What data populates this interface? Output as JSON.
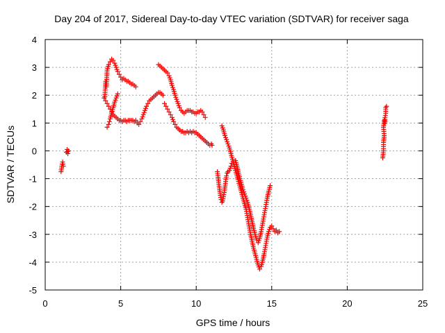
{
  "chart_data": {
    "type": "scatter",
    "title": "Day 204 of 2017, Sidereal Day-to-day VTEC variation (SDTVAR) for receiver saga",
    "xlabel": "GPS time / hours",
    "ylabel": "SDTVAR / TECUs",
    "xlim": [
      0,
      25
    ],
    "ylim": [
      -5,
      4
    ],
    "xticks": [
      0,
      5,
      10,
      15,
      20,
      25
    ],
    "yticks": [
      -5,
      -4,
      -3,
      -2,
      -1,
      0,
      1,
      2,
      3,
      4
    ],
    "xtick_labels": [
      "0",
      "5",
      "10",
      "15",
      "20",
      "25"
    ],
    "ytick_labels": [
      "-5",
      "-4",
      "-3",
      "-2",
      "-1",
      "0",
      "1",
      "2",
      "3",
      "4"
    ],
    "grid": true,
    "legend": "none",
    "marker": "+",
    "color": "#ff0000",
    "series": [
      {
        "points": [
          [
            1.05,
            -0.75
          ],
          [
            1.1,
            -0.55
          ],
          [
            1.15,
            -0.4
          ],
          [
            1.2,
            -0.55
          ]
        ]
      },
      {
        "points": [
          [
            1.4,
            -0.05
          ],
          [
            1.45,
            0.05
          ],
          [
            1.5,
            -0.1
          ],
          [
            1.55,
            0.0
          ]
        ]
      },
      {
        "points": [
          [
            3.95,
            1.95
          ],
          [
            4.0,
            2.5
          ],
          [
            4.05,
            2.3
          ],
          [
            4.1,
            2.9
          ],
          [
            4.2,
            3.1
          ],
          [
            4.3,
            3.2
          ],
          [
            4.4,
            3.3
          ],
          [
            4.5,
            3.25
          ],
          [
            4.6,
            3.15
          ],
          [
            4.7,
            3.0
          ],
          [
            4.8,
            2.85
          ],
          [
            4.9,
            2.75
          ],
          [
            5.0,
            2.65
          ],
          [
            5.1,
            2.55
          ],
          [
            5.2,
            2.6
          ],
          [
            5.3,
            2.55
          ],
          [
            5.4,
            2.5
          ],
          [
            5.5,
            2.5
          ],
          [
            5.6,
            2.45
          ],
          [
            5.7,
            2.4
          ],
          [
            5.8,
            2.4
          ],
          [
            5.9,
            2.35
          ],
          [
            6.0,
            2.3
          ]
        ]
      },
      {
        "points": [
          [
            3.9,
            1.9
          ],
          [
            4.0,
            1.8
          ],
          [
            4.1,
            1.7
          ],
          [
            4.2,
            1.6
          ],
          [
            4.3,
            1.5
          ],
          [
            4.4,
            1.4
          ],
          [
            4.5,
            1.3
          ],
          [
            4.6,
            1.25
          ],
          [
            4.7,
            1.2
          ],
          [
            4.8,
            1.15
          ],
          [
            4.9,
            1.1
          ],
          [
            5.0,
            1.1
          ],
          [
            5.1,
            1.05
          ],
          [
            5.2,
            1.1
          ],
          [
            5.3,
            1.1
          ],
          [
            5.4,
            1.05
          ],
          [
            5.5,
            1.1
          ],
          [
            5.6,
            1.1
          ],
          [
            5.7,
            1.1
          ],
          [
            5.8,
            1.1
          ],
          [
            5.9,
            1.05
          ],
          [
            6.0,
            1.1
          ],
          [
            6.1,
            1.0
          ],
          [
            6.2,
            0.95
          ],
          [
            6.3,
            1.05
          ],
          [
            6.4,
            1.15
          ],
          [
            6.5,
            1.3
          ],
          [
            6.6,
            1.45
          ],
          [
            6.7,
            1.6
          ],
          [
            6.8,
            1.7
          ],
          [
            6.9,
            1.8
          ],
          [
            7.0,
            1.85
          ],
          [
            7.1,
            1.9
          ],
          [
            7.2,
            1.95
          ],
          [
            7.3,
            2.0
          ],
          [
            7.4,
            2.05
          ],
          [
            7.5,
            2.1
          ],
          [
            7.6,
            2.1
          ],
          [
            7.7,
            2.05
          ],
          [
            7.8,
            2.0
          ]
        ]
      },
      {
        "points": [
          [
            4.1,
            0.85
          ],
          [
            4.2,
            0.95
          ],
          [
            4.25,
            1.05
          ],
          [
            4.3,
            1.15
          ],
          [
            4.4,
            1.35
          ],
          [
            4.5,
            1.55
          ],
          [
            4.6,
            1.75
          ],
          [
            4.7,
            1.9
          ],
          [
            4.8,
            2.05
          ]
        ]
      },
      {
        "points": [
          [
            7.5,
            3.1
          ],
          [
            7.6,
            3.05
          ],
          [
            7.7,
            3.0
          ],
          [
            7.8,
            2.95
          ],
          [
            7.9,
            2.9
          ],
          [
            8.0,
            2.85
          ],
          [
            8.1,
            2.8
          ],
          [
            8.2,
            2.7
          ],
          [
            8.3,
            2.55
          ],
          [
            8.4,
            2.35
          ],
          [
            8.5,
            2.2
          ],
          [
            8.6,
            2.0
          ],
          [
            8.7,
            1.85
          ],
          [
            8.8,
            1.7
          ],
          [
            8.9,
            1.55
          ],
          [
            9.0,
            1.45
          ],
          [
            9.1,
            1.4
          ],
          [
            9.2,
            1.35
          ],
          [
            9.3,
            1.4
          ],
          [
            9.4,
            1.45
          ],
          [
            9.5,
            1.45
          ],
          [
            9.6,
            1.45
          ],
          [
            9.7,
            1.4
          ],
          [
            9.8,
            1.4
          ],
          [
            9.9,
            1.35
          ],
          [
            10.0,
            1.35
          ],
          [
            10.1,
            1.4
          ],
          [
            10.2,
            1.4
          ],
          [
            10.3,
            1.45
          ],
          [
            10.4,
            1.4
          ],
          [
            10.5,
            1.3
          ],
          [
            10.6,
            1.2
          ]
        ]
      },
      {
        "points": [
          [
            7.9,
            1.7
          ],
          [
            8.0,
            1.6
          ],
          [
            8.1,
            1.5
          ],
          [
            8.2,
            1.4
          ],
          [
            8.3,
            1.3
          ],
          [
            8.4,
            1.2
          ],
          [
            8.5,
            1.05
          ],
          [
            8.6,
            0.95
          ],
          [
            8.7,
            0.85
          ],
          [
            8.8,
            0.8
          ],
          [
            8.9,
            0.75
          ],
          [
            9.0,
            0.7
          ],
          [
            9.1,
            0.7
          ],
          [
            9.2,
            0.65
          ],
          [
            9.3,
            0.65
          ],
          [
            9.4,
            0.7
          ],
          [
            9.5,
            0.65
          ],
          [
            9.6,
            0.7
          ],
          [
            9.7,
            0.65
          ],
          [
            9.8,
            0.7
          ],
          [
            9.9,
            0.65
          ],
          [
            10.0,
            0.65
          ],
          [
            10.1,
            0.6
          ],
          [
            10.2,
            0.55
          ],
          [
            10.3,
            0.5
          ],
          [
            10.4,
            0.45
          ],
          [
            10.5,
            0.4
          ],
          [
            10.6,
            0.35
          ],
          [
            10.7,
            0.3
          ],
          [
            10.8,
            0.25
          ],
          [
            10.9,
            0.2
          ],
          [
            11.0,
            0.25
          ],
          [
            11.05,
            0.2
          ]
        ]
      },
      {
        "points": [
          [
            11.4,
            -0.75
          ],
          [
            11.45,
            -0.95
          ],
          [
            11.5,
            -1.2
          ],
          [
            11.55,
            -1.4
          ],
          [
            11.6,
            -1.6
          ],
          [
            11.65,
            -1.75
          ],
          [
            11.7,
            -1.85
          ],
          [
            11.75,
            -1.8
          ],
          [
            11.8,
            -1.65
          ],
          [
            11.85,
            -1.5
          ],
          [
            11.9,
            -1.3
          ],
          [
            11.95,
            -1.1
          ],
          [
            12.0,
            -0.9
          ],
          [
            12.05,
            -0.8
          ],
          [
            12.1,
            -0.75
          ],
          [
            12.2,
            -0.7
          ],
          [
            12.3,
            -0.55
          ],
          [
            12.35,
            -0.45
          ]
        ]
      },
      {
        "points": [
          [
            11.7,
            0.9
          ],
          [
            11.8,
            0.75
          ],
          [
            11.9,
            0.55
          ],
          [
            12.0,
            0.4
          ],
          [
            12.1,
            0.25
          ],
          [
            12.2,
            0.1
          ],
          [
            12.3,
            -0.1
          ],
          [
            12.4,
            -0.3
          ],
          [
            12.5,
            -0.5
          ],
          [
            12.6,
            -0.7
          ],
          [
            12.7,
            -0.9
          ],
          [
            12.8,
            -1.1
          ],
          [
            12.9,
            -1.3
          ],
          [
            13.0,
            -1.5
          ],
          [
            13.1,
            -1.7
          ],
          [
            13.2,
            -1.9
          ],
          [
            13.3,
            -2.1
          ],
          [
            13.4,
            -2.4
          ],
          [
            13.5,
            -2.7
          ],
          [
            13.6,
            -3.0
          ],
          [
            13.7,
            -3.25
          ],
          [
            13.8,
            -3.5
          ],
          [
            13.9,
            -3.7
          ],
          [
            14.0,
            -3.9
          ],
          [
            14.1,
            -4.1
          ],
          [
            14.2,
            -4.25
          ],
          [
            14.3,
            -4.15
          ],
          [
            14.4,
            -3.95
          ],
          [
            14.5,
            -3.7
          ],
          [
            14.6,
            -3.4
          ],
          [
            14.7,
            -3.1
          ],
          [
            14.8,
            -2.9
          ],
          [
            14.9,
            -2.75
          ],
          [
            15.0,
            -2.7
          ],
          [
            15.1,
            -2.8
          ],
          [
            15.2,
            -2.9
          ],
          [
            15.3,
            -2.85
          ],
          [
            15.4,
            -2.95
          ],
          [
            15.5,
            -2.9
          ]
        ]
      },
      {
        "points": [
          [
            12.6,
            -0.35
          ],
          [
            12.7,
            -0.55
          ],
          [
            12.8,
            -0.8
          ],
          [
            12.9,
            -1.0
          ],
          [
            13.0,
            -1.2
          ],
          [
            13.1,
            -1.4
          ],
          [
            13.2,
            -1.55
          ],
          [
            13.3,
            -1.7
          ],
          [
            13.4,
            -1.85
          ],
          [
            13.5,
            -2.05
          ],
          [
            13.6,
            -2.3
          ],
          [
            13.7,
            -2.55
          ],
          [
            13.8,
            -2.8
          ],
          [
            13.9,
            -3.0
          ],
          [
            14.0,
            -3.2
          ],
          [
            14.1,
            -3.3
          ],
          [
            14.2,
            -3.15
          ],
          [
            14.3,
            -2.9
          ],
          [
            14.4,
            -2.6
          ],
          [
            14.5,
            -2.3
          ],
          [
            14.6,
            -2.0
          ],
          [
            14.7,
            -1.7
          ],
          [
            14.8,
            -1.45
          ],
          [
            14.9,
            -1.25
          ]
        ]
      },
      {
        "points": [
          [
            22.35,
            -0.25
          ],
          [
            22.4,
            0.0
          ],
          [
            22.4,
            0.3
          ],
          [
            22.45,
            0.55
          ],
          [
            22.4,
            0.85
          ],
          [
            22.45,
            1.1
          ],
          [
            22.5,
            1.0
          ],
          [
            22.5,
            1.2
          ],
          [
            22.55,
            1.35
          ],
          [
            22.55,
            1.55
          ],
          [
            22.6,
            1.6
          ]
        ]
      }
    ]
  }
}
